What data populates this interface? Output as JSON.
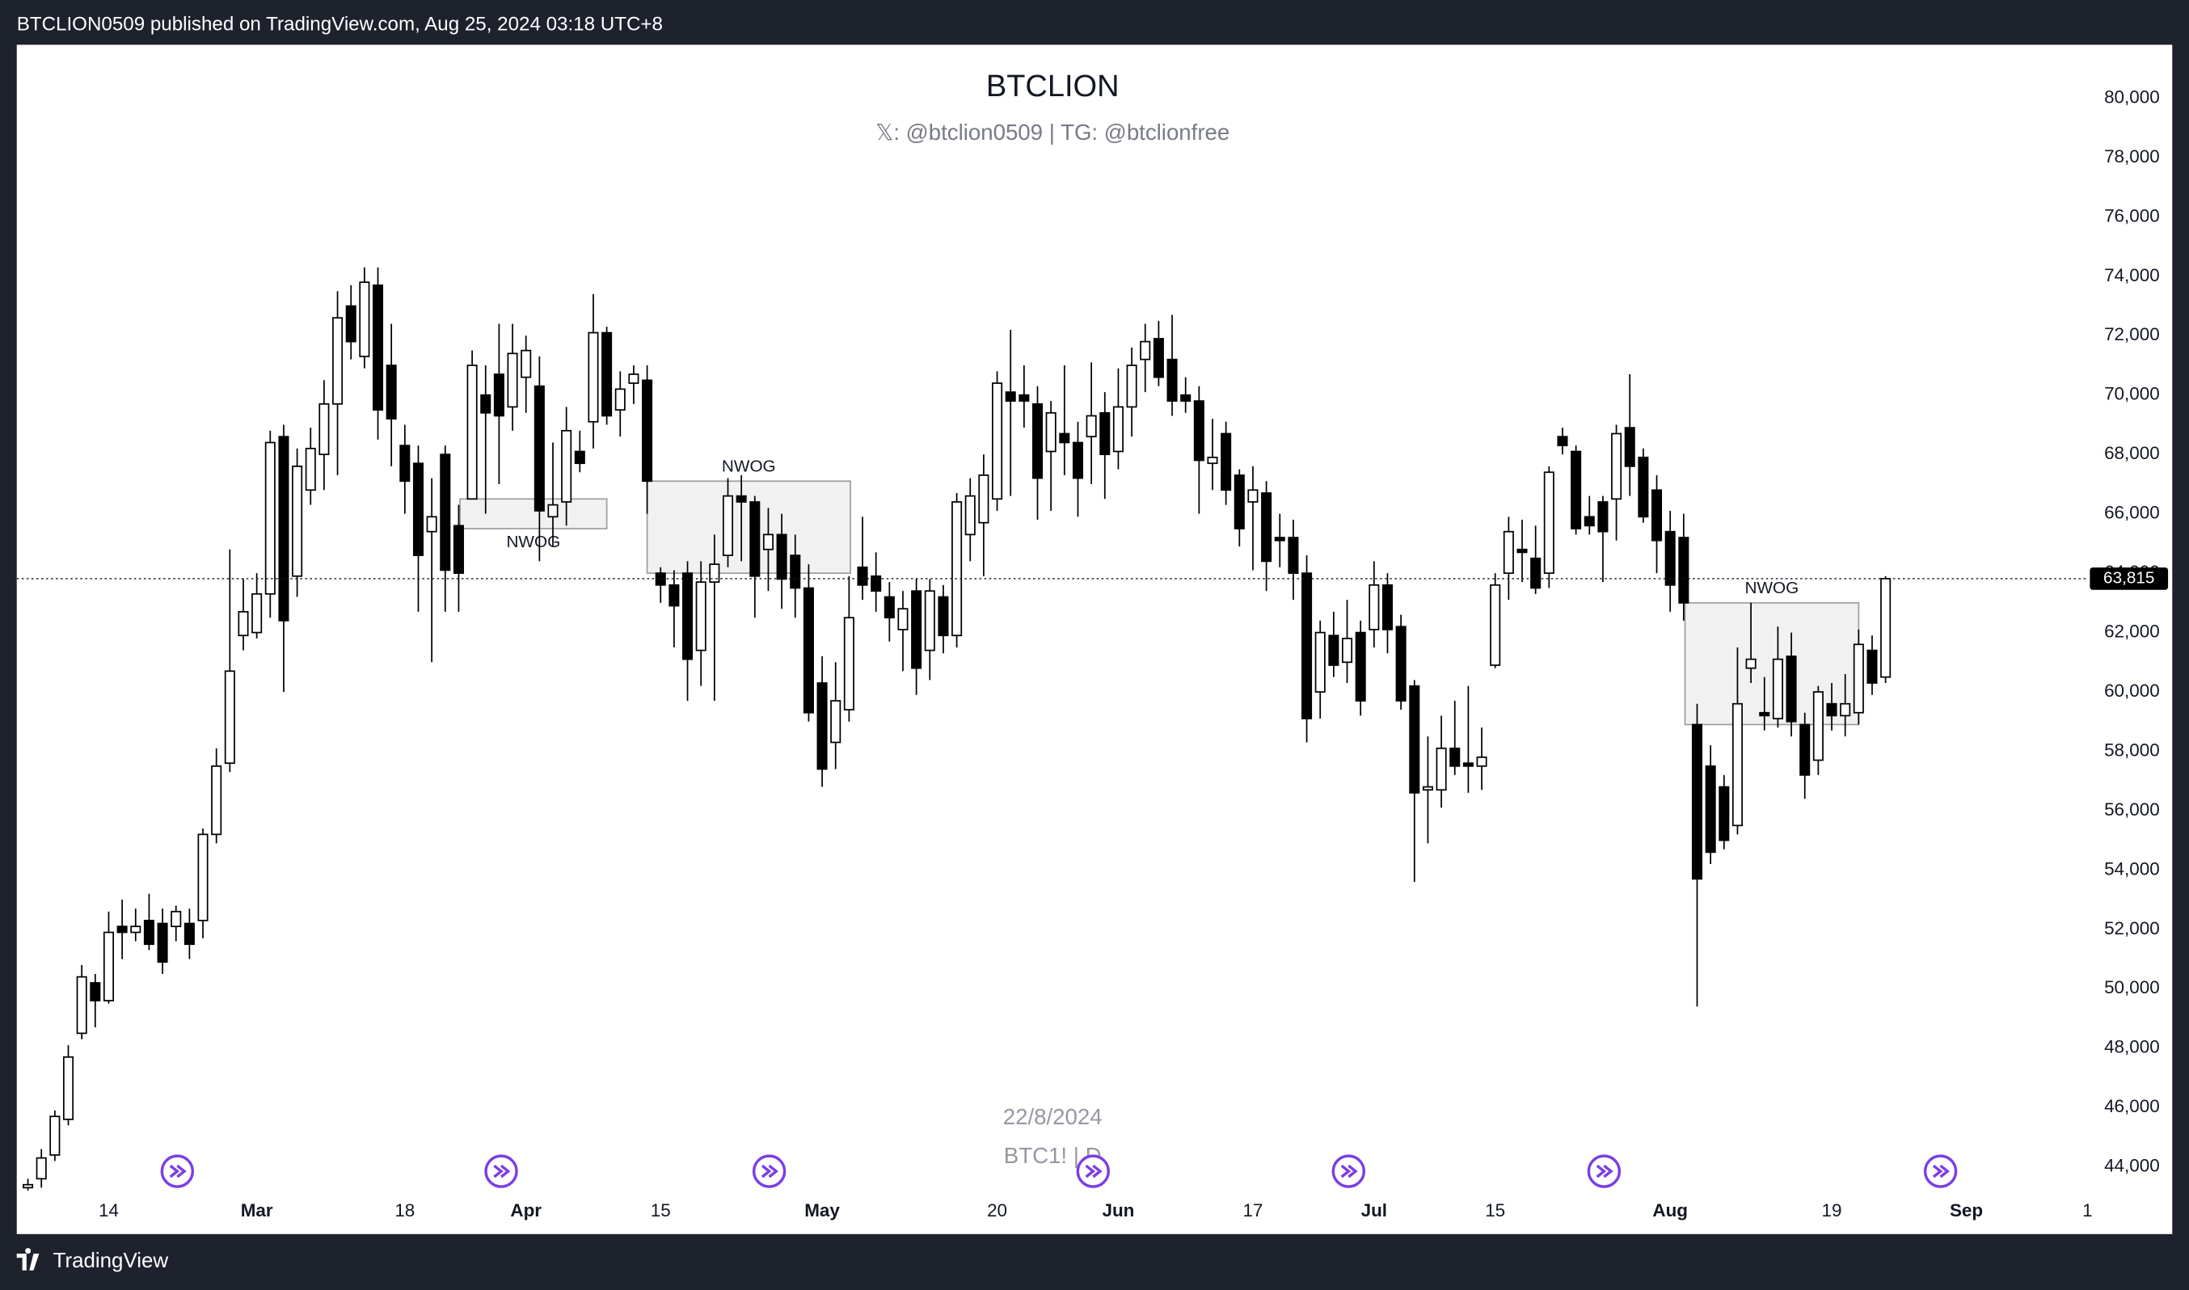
{
  "header": {
    "text": "BTCLION0509 published on TradingView.com, Aug 25, 2024 03:18 UTC+8"
  },
  "footer": {
    "brand": "TradingView"
  },
  "chart_data": {
    "type": "candlestick",
    "title": "BTCLION",
    "subtitle": "𝕏: @btclion0509 | TG: @btclionfree",
    "watermark": [
      "22/8/2024",
      "BTC1! | D"
    ],
    "up_color": "#ffffff",
    "down_color": "#000000",
    "open": [
      43300,
      43600,
      44400,
      45600,
      48500,
      50200,
      49600,
      52100,
      51900,
      52300,
      52200,
      52100,
      52200,
      52300,
      55200,
      57600,
      61900,
      62000,
      63300,
      68600,
      63900,
      66800,
      68000,
      69700,
      73000,
      71300,
      73700,
      71000,
      68300,
      67700,
      65400,
      68000,
      65600,
      66500,
      70000,
      70700,
      69600,
      70600,
      70300,
      65900,
      66400,
      68100,
      69100,
      72100,
      69500,
      70400,
      70500,
      64000,
      63600,
      64000,
      61400,
      63700,
      64600,
      66600,
      66400,
      64800,
      65300,
      64600,
      63500,
      60300,
      58300,
      59400,
      64200,
      63900,
      63200,
      62100,
      63400,
      61400,
      63200,
      61900,
      65300,
      65700,
      66500,
      70100,
      70000,
      69700,
      68100,
      68700,
      68400,
      68600,
      69400,
      68100,
      69600,
      71200,
      71900,
      71200,
      70000,
      69800,
      67700,
      68700,
      67300,
      66400,
      66700,
      65200,
      65200,
      64000,
      60000,
      61900,
      61000,
      62000,
      62100,
      63600,
      62200,
      60200,
      56700,
      56700,
      58100,
      57600,
      57500,
      60900,
      64000,
      64800,
      64500,
      64000,
      68600,
      68100,
      65900,
      66400,
      66500,
      68900,
      67900,
      66800,
      65400,
      65200,
      58900,
      57500,
      56800,
      55500,
      60800,
      59300,
      59100,
      61200,
      58900,
      57700,
      59600,
      59200,
      59300,
      61400,
      60500
    ],
    "high": [
      43600,
      44600,
      45900,
      48100,
      50800,
      50500,
      52600,
      53000,
      52700,
      53200,
      52700,
      52800,
      52700,
      55400,
      58100,
      64800,
      63800,
      64000,
      68800,
      69000,
      68200,
      68900,
      70500,
      73500,
      73700,
      74300,
      74300,
      72400,
      69000,
      68300,
      67200,
      68300,
      66300,
      71500,
      71000,
      72400,
      72400,
      72000,
      71300,
      68400,
      69600,
      68800,
      73400,
      72300,
      70800,
      71000,
      71000,
      64200,
      64100,
      64400,
      64400,
      65300,
      67200,
      67300,
      66600,
      66200,
      66000,
      65300,
      64300,
      61200,
      61000,
      63900,
      65900,
      64700,
      63700,
      63400,
      63800,
      63800,
      63600,
      66700,
      67200,
      68000,
      70800,
      72200,
      71000,
      70300,
      69800,
      71000,
      69100,
      71100,
      70100,
      70900,
      71600,
      72400,
      72500,
      72700,
      70600,
      70300,
      69200,
      69100,
      67500,
      67600,
      67100,
      66000,
      65800,
      64600,
      62400,
      62700,
      63100,
      62400,
      64400,
      64000,
      62600,
      60400,
      58500,
      59200,
      59700,
      60200,
      58800,
      64000,
      65900,
      65800,
      65600,
      67600,
      68900,
      68300,
      66600,
      66600,
      69000,
      70700,
      68200,
      67300,
      66100,
      66000,
      59600,
      58200,
      57200,
      61500,
      63000,
      60500,
      62200,
      62000,
      59300,
      60200,
      60300,
      60600,
      62100,
      61900,
      63900
    ],
    "low": [
      43200,
      43300,
      44200,
      45400,
      48300,
      48700,
      49500,
      51000,
      51600,
      51300,
      50500,
      51600,
      51000,
      51700,
      54900,
      57300,
      61400,
      61800,
      62500,
      60000,
      63200,
      66300,
      66800,
      67300,
      71200,
      70900,
      68500,
      67600,
      66000,
      62700,
      61000,
      62700,
      62700,
      66500,
      66000,
      67000,
      68800,
      69400,
      64400,
      64900,
      65600,
      67400,
      68200,
      69000,
      68600,
      69700,
      66000,
      63000,
      61500,
      59700,
      60200,
      59700,
      64200,
      64400,
      62500,
      63400,
      62800,
      62500,
      59000,
      56800,
      57400,
      59000,
      63100,
      62700,
      61700,
      60700,
      59900,
      60400,
      61300,
      61500,
      64400,
      63900,
      66100,
      66600,
      68900,
      65800,
      66100,
      67300,
      65900,
      67000,
      66500,
      67500,
      68600,
      70100,
      70300,
      69300,
      69400,
      66000,
      66800,
      66300,
      64900,
      64100,
      63400,
      64200,
      63100,
      58300,
      59100,
      60500,
      60300,
      59200,
      61500,
      61300,
      59400,
      53600,
      54900,
      56100,
      57200,
      56600,
      56700,
      60800,
      63100,
      63700,
      63300,
      63500,
      68000,
      65300,
      65300,
      63700,
      65100,
      66600,
      65700,
      64000,
      62700,
      62400,
      49400,
      54200,
      54700,
      55200,
      60300,
      58700,
      58800,
      58500,
      56400,
      57200,
      58700,
      58500,
      58900,
      59900,
      60300
    ],
    "close": [
      43400,
      44300,
      45700,
      47700,
      50400,
      49600,
      51900,
      51900,
      52100,
      51500,
      50900,
      52600,
      51500,
      55200,
      57500,
      60700,
      62700,
      63300,
      68400,
      62400,
      67600,
      68200,
      69700,
      72600,
      71800,
      73800,
      69500,
      69200,
      67100,
      64600,
      65900,
      64100,
      64000,
      71000,
      69400,
      69300,
      71400,
      71500,
      66100,
      66300,
      68800,
      67700,
      72100,
      69300,
      70200,
      70700,
      67100,
      63600,
      62900,
      61100,
      63700,
      64300,
      66600,
      66400,
      63900,
      65300,
      63800,
      63500,
      59300,
      57400,
      59700,
      62500,
      63600,
      63400,
      62500,
      62800,
      60800,
      63400,
      61900,
      66400,
      66600,
      67300,
      70400,
      69800,
      69800,
      67200,
      69400,
      68400,
      67200,
      69300,
      68000,
      69600,
      71000,
      71800,
      70600,
      69800,
      69800,
      67800,
      67900,
      66800,
      65500,
      66800,
      64400,
      65100,
      64000,
      59100,
      62000,
      60900,
      61800,
      59700,
      63600,
      62100,
      59700,
      56600,
      56800,
      58100,
      57500,
      57500,
      57800,
      63600,
      65400,
      64700,
      63500,
      67400,
      68300,
      65500,
      65600,
      65400,
      68700,
      67600,
      65900,
      65100,
      63600,
      63000,
      53700,
      54600,
      55000,
      59600,
      61100,
      59200,
      61100,
      59000,
      57200,
      60000,
      59200,
      59600,
      61600,
      60300,
      63815
    ],
    "xlim": [
      -0.83,
      152.97
    ],
    "xticks": [
      {
        "value": 6,
        "label": "14"
      },
      {
        "value": 17,
        "label": "Mar"
      },
      {
        "value": 28,
        "label": "18"
      },
      {
        "value": 37,
        "label": "Apr"
      },
      {
        "value": 47,
        "label": "15"
      },
      {
        "value": 59,
        "label": "May"
      },
      {
        "value": 72,
        "label": "20"
      },
      {
        "value": 81,
        "label": "Jun"
      },
      {
        "value": 91,
        "label": "17"
      },
      {
        "value": 100,
        "label": "Jul"
      },
      {
        "value": 109,
        "label": "15"
      },
      {
        "value": 122,
        "label": "Aug"
      },
      {
        "value": 134,
        "label": "19"
      },
      {
        "value": 144,
        "label": "Sep"
      },
      {
        "value": 153,
        "label": "1"
      }
    ],
    "ylim": [
      43100,
      81800
    ],
    "yticks": [
      {
        "value": 44000,
        "label": "44,000"
      },
      {
        "value": 46000,
        "label": "46,000"
      },
      {
        "value": 48000,
        "label": "48,000"
      },
      {
        "value": 50000,
        "label": "50,000"
      },
      {
        "value": 52000,
        "label": "52,000"
      },
      {
        "value": 54000,
        "label": "54,000"
      },
      {
        "value": 56000,
        "label": "56,000"
      },
      {
        "value": 58000,
        "label": "58,000"
      },
      {
        "value": 60000,
        "label": "60,000"
      },
      {
        "value": 62000,
        "label": "62,000"
      },
      {
        "value": 64000,
        "label": "64,000"
      },
      {
        "value": 66000,
        "label": "66,000"
      },
      {
        "value": 68000,
        "label": "68,000"
      },
      {
        "value": 70000,
        "label": "70,000"
      },
      {
        "value": 72000,
        "label": "72,000"
      },
      {
        "value": 74000,
        "label": "74,000"
      },
      {
        "value": 76000,
        "label": "76,000"
      },
      {
        "value": 78000,
        "label": "78,000"
      },
      {
        "value": 80000,
        "label": "80,000"
      }
    ],
    "last_price": {
      "value": 63815,
      "label": "63,815"
    },
    "zones": [
      {
        "label": "NWOG",
        "x": [
          32.1,
          43.0
        ],
        "y": [
          65500,
          66500
        ],
        "label_position": "below"
      },
      {
        "label": "NWOG",
        "x": [
          46.0,
          61.1
        ],
        "y": [
          64000,
          67100
        ],
        "label_position": "above"
      },
      {
        "label": "NWOG",
        "x": [
          123.1,
          136.0
        ],
        "y": [
          58900,
          63000
        ],
        "label_position": "above"
      }
    ]
  }
}
